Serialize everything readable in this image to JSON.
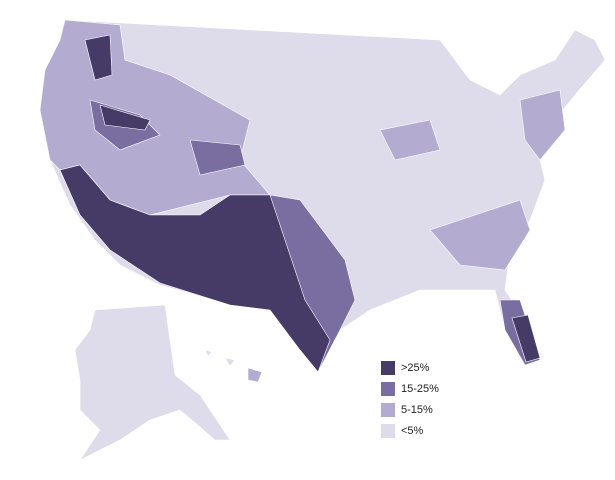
{
  "legend": {
    "items": [
      {
        "label": ">25%",
        "color": "#463a66"
      },
      {
        "label": "15-25%",
        "color": "#7a6d9f"
      },
      {
        "label": "5-15%",
        "color": "#b4abd0"
      },
      {
        "label": "<5%",
        "color": "#dedbea"
      }
    ]
  }
}
